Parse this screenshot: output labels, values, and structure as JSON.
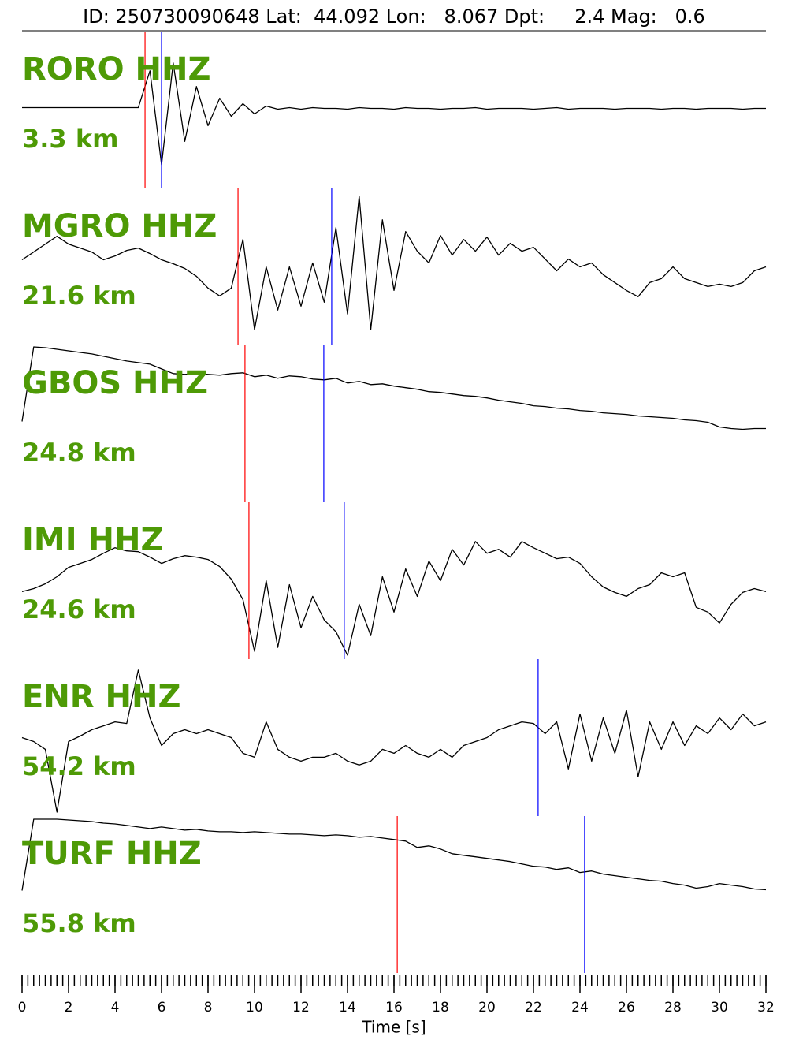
{
  "chart_data": {
    "type": "seismogram",
    "title": "ID: 250730090648 Lat:  44.092 Lon:   8.067 Dpt:     2.4 Mag:   0.6",
    "xlabel": "Time [s]",
    "xlim": [
      0,
      32
    ],
    "xticks": [
      0,
      2,
      4,
      6,
      8,
      10,
      12,
      14,
      16,
      18,
      20,
      22,
      24,
      26,
      28,
      30,
      32
    ],
    "minor_tick_step": 0.25,
    "ylim": [
      -1,
      1
    ],
    "label_color": "#4e9a06",
    "trace_color": "#000000",
    "p_color": "#ff0000",
    "s_color": "#0000ff",
    "time": [
      0,
      0.5,
      1,
      1.5,
      2,
      2.5,
      3,
      3.5,
      4,
      4.5,
      5,
      5.5,
      6,
      6.5,
      7,
      7.5,
      8,
      8.5,
      9,
      9.5,
      10,
      10.5,
      11,
      11.5,
      12,
      12.5,
      13,
      13.5,
      14,
      14.5,
      15,
      15.5,
      16,
      16.5,
      17,
      17.5,
      18,
      18.5,
      19,
      19.5,
      20,
      20.5,
      21,
      21.5,
      22,
      22.5,
      23,
      23.5,
      24,
      24.5,
      25,
      25.5,
      26,
      26.5,
      27,
      27.5,
      28,
      28.5,
      29,
      29.5,
      30,
      30.5,
      31,
      31.5,
      32
    ],
    "stations": [
      {
        "name": "RORO HHZ",
        "distance": "3.3 km",
        "P": 5.29,
        "S": 6.0,
        "values": [
          0.03,
          0.03,
          0.03,
          0.03,
          0.03,
          0.03,
          0.03,
          0.03,
          0.03,
          0.03,
          0.03,
          0.5,
          -0.7,
          0.6,
          -0.4,
          0.3,
          -0.2,
          0.15,
          -0.08,
          0.08,
          -0.05,
          0.05,
          0.01,
          0.03,
          0.01,
          0.03,
          0.02,
          0.02,
          0.01,
          0.03,
          0.02,
          0.02,
          0.01,
          0.03,
          0.02,
          0.02,
          0.01,
          0.02,
          0.02,
          0.03,
          0.01,
          0.02,
          0.02,
          0.02,
          0.01,
          0.02,
          0.03,
          0.01,
          0.02,
          0.02,
          0.02,
          0.01,
          0.02,
          0.02,
          0.02,
          0.01,
          0.02,
          0.02,
          0.01,
          0.02,
          0.02,
          0.02,
          0.01,
          0.02,
          0.02
        ]
      },
      {
        "name": "MGRO HHZ",
        "distance": "21.6 km",
        "P": 9.29,
        "S": 13.32,
        "values": [
          0.09,
          0.19,
          0.29,
          0.39,
          0.29,
          0.24,
          0.19,
          0.09,
          0.14,
          0.21,
          0.24,
          0.17,
          0.09,
          0.04,
          -0.02,
          -0.12,
          -0.27,
          -0.37,
          -0.27,
          0.35,
          -0.8,
          0.0,
          -0.55,
          0.0,
          -0.5,
          0.05,
          -0.45,
          0.5,
          -0.6,
          0.9,
          -0.8,
          0.6,
          -0.3,
          0.45,
          0.2,
          0.05,
          0.4,
          0.15,
          0.35,
          0.2,
          0.38,
          0.15,
          0.3,
          0.2,
          0.25,
          0.1,
          -0.05,
          0.1,
          0.0,
          0.05,
          -0.1,
          -0.2,
          -0.3,
          -0.38,
          -0.2,
          -0.15,
          0.0,
          -0.15,
          -0.2,
          -0.25,
          -0.22,
          -0.25,
          -0.2,
          -0.05,
          0.0
        ]
      },
      {
        "name": "GBOS HHZ",
        "distance": "24.8 km",
        "P": 9.59,
        "S": 12.98,
        "values": [
          0.03,
          0.98,
          0.97,
          0.95,
          0.93,
          0.91,
          0.89,
          0.86,
          0.83,
          0.8,
          0.78,
          0.76,
          0.7,
          0.64,
          0.63,
          0.64,
          0.63,
          0.62,
          0.64,
          0.65,
          0.6,
          0.62,
          0.58,
          0.61,
          0.6,
          0.57,
          0.56,
          0.58,
          0.52,
          0.54,
          0.5,
          0.51,
          0.48,
          0.46,
          0.44,
          0.41,
          0.4,
          0.38,
          0.36,
          0.35,
          0.33,
          0.3,
          0.28,
          0.26,
          0.23,
          0.22,
          0.2,
          0.19,
          0.17,
          0.16,
          0.14,
          0.13,
          0.12,
          0.1,
          0.09,
          0.08,
          0.07,
          0.05,
          0.04,
          0.02,
          -0.04,
          -0.06,
          -0.07,
          -0.06,
          -0.06
        ]
      },
      {
        "name": "IMI HHZ",
        "distance": "24.6 km",
        "P": 9.76,
        "S": 13.86,
        "values": [
          -0.14,
          -0.1,
          -0.04,
          0.05,
          0.17,
          0.22,
          0.27,
          0.35,
          0.42,
          0.38,
          0.37,
          0.3,
          0.22,
          0.28,
          0.32,
          0.3,
          0.27,
          0.18,
          0.02,
          -0.24,
          -0.9,
          0.0,
          -0.85,
          -0.05,
          -0.6,
          -0.2,
          -0.5,
          -0.65,
          -0.95,
          -0.3,
          -0.7,
          0.05,
          -0.4,
          0.15,
          -0.2,
          0.25,
          0.0,
          0.4,
          0.2,
          0.5,
          0.35,
          0.4,
          0.3,
          0.5,
          0.42,
          0.35,
          0.28,
          0.3,
          0.22,
          0.05,
          -0.08,
          -0.15,
          -0.2,
          -0.1,
          -0.05,
          0.1,
          0.05,
          0.1,
          -0.34,
          -0.4,
          -0.54,
          -0.3,
          -0.15,
          -0.1,
          -0.14
        ]
      },
      {
        "name": "ENR HHZ",
        "distance": "54.2 km",
        "P": null,
        "S": 22.2,
        "values": [
          0.0,
          -0.05,
          -0.15,
          -0.95,
          -0.05,
          0.02,
          0.1,
          0.15,
          0.2,
          0.18,
          0.86,
          0.25,
          -0.1,
          0.05,
          0.1,
          0.05,
          0.1,
          0.05,
          0.0,
          -0.2,
          -0.25,
          0.2,
          -0.15,
          -0.25,
          -0.3,
          -0.25,
          -0.25,
          -0.2,
          -0.3,
          -0.35,
          -0.3,
          -0.15,
          -0.2,
          -0.1,
          -0.2,
          -0.25,
          -0.15,
          -0.25,
          -0.1,
          -0.05,
          0.0,
          0.1,
          0.15,
          0.2,
          0.18,
          0.05,
          0.2,
          -0.4,
          0.3,
          -0.3,
          0.25,
          -0.2,
          0.35,
          -0.5,
          0.2,
          -0.15,
          0.2,
          -0.1,
          0.15,
          0.05,
          0.25,
          0.1,
          0.3,
          0.15,
          0.2
        ]
      },
      {
        "name": "TURF HHZ",
        "distance": "55.8 km",
        "P": 16.14,
        "S": 24.2,
        "values": [
          0.05,
          0.96,
          0.96,
          0.96,
          0.95,
          0.94,
          0.93,
          0.91,
          0.9,
          0.88,
          0.86,
          0.84,
          0.86,
          0.84,
          0.82,
          0.83,
          0.81,
          0.8,
          0.8,
          0.79,
          0.8,
          0.79,
          0.78,
          0.77,
          0.77,
          0.76,
          0.75,
          0.76,
          0.75,
          0.73,
          0.74,
          0.72,
          0.7,
          0.68,
          0.6,
          0.62,
          0.58,
          0.52,
          0.5,
          0.48,
          0.46,
          0.44,
          0.42,
          0.39,
          0.36,
          0.35,
          0.32,
          0.34,
          0.28,
          0.3,
          0.26,
          0.24,
          0.22,
          0.2,
          0.18,
          0.17,
          0.14,
          0.12,
          0.08,
          0.1,
          0.14,
          0.12,
          0.1,
          0.07,
          0.06
        ]
      }
    ]
  }
}
